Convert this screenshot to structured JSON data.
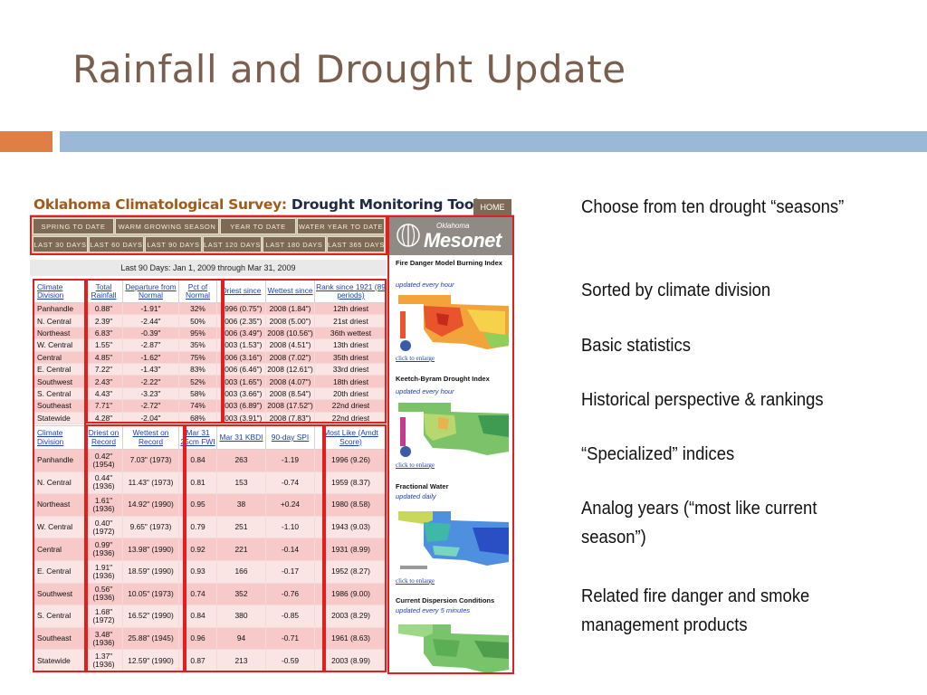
{
  "slide": {
    "title": "Rainfall and Drought Update"
  },
  "colors": {
    "title": "#7b5f4e",
    "accent_orange": "#e07f45",
    "accent_blue": "#9ab9d6",
    "highlight_box": "#e21f1f"
  },
  "screenshot": {
    "title_part1": "Oklahoma Climatological Survey:",
    "title_part2": "Drought Monitoring Tools",
    "home_label": "HOME",
    "season_tabs": [
      "SPRING TO DATE",
      "WARM GROWING SEASON",
      "YEAR TO DATE",
      "WATER YEAR TO DATE"
    ],
    "day_tabs": [
      "LAST 30 DAYS",
      "LAST 60 DAYS",
      "LAST 90 DAYS",
      "LAST 120 DAYS",
      "LAST 180 DAYS",
      "LAST 365 DAYS"
    ],
    "logo_small": "Oklahoma",
    "logo_big": "Mesonet",
    "period": "Last 90 Days: Jan 1, 2009 through Mar 31, 2009",
    "table1": {
      "headers": [
        "Climate Division",
        "Total Rainfall",
        "Departure from Normal",
        "Pct of Normal",
        "Driest since",
        "Wettest since",
        "Rank since 1921 (89 periods)"
      ],
      "rows": [
        [
          "Panhandle",
          "0.88\"",
          "-1.91\"",
          "32%",
          "1996 (0.75\")",
          "2008 (1.84\")",
          "12th driest"
        ],
        [
          "N. Central",
          "2.39\"",
          "-2.44\"",
          "50%",
          "2006 (2.35\")",
          "2008 (5.00\")",
          "21st driest"
        ],
        [
          "Northeast",
          "6.83\"",
          "-0.39\"",
          "95%",
          "2006 (3.49\")",
          "2008 (10.56\")",
          "36th wettest"
        ],
        [
          "W. Central",
          "1.55\"",
          "-2.87\"",
          "35%",
          "2003 (1.53\")",
          "2008 (4.51\")",
          "13th driest"
        ],
        [
          "Central",
          "4.85\"",
          "-1.62\"",
          "75%",
          "2006 (3.16\")",
          "2008 (7.02\")",
          "35th driest"
        ],
        [
          "E. Central",
          "7.22\"",
          "-1.43\"",
          "83%",
          "2006 (6.46\")",
          "2008 (12.61\")",
          "33rd driest"
        ],
        [
          "Southwest",
          "2.43\"",
          "-2.22\"",
          "52%",
          "2003 (1.65\")",
          "2008 (4.07\")",
          "18th driest"
        ],
        [
          "S. Central",
          "4.43\"",
          "-3.23\"",
          "58%",
          "2003 (3.66\")",
          "2008 (8.54\")",
          "20th driest"
        ],
        [
          "Southeast",
          "7.71\"",
          "-2.72\"",
          "74%",
          "2003 (6.89\")",
          "2008 (17.52\")",
          "22nd driest"
        ],
        [
          "Statewide",
          "4.28\"",
          "-2.04\"",
          "68%",
          "2003 (3.91\")",
          "2008 (7.83\")",
          "22nd driest"
        ]
      ]
    },
    "table2": {
      "headers": [
        "Climate Division",
        "Driest on Record",
        "Wettest on Record",
        "Mar 31 25cm FWI",
        "Mar 31 KBDI",
        "90-day SPI",
        "Most Like (Amdt Score)"
      ],
      "rows": [
        [
          "Panhandle",
          "0.42\" (1954)",
          "7.03\" (1973)",
          "0.84",
          "263",
          "-1.19",
          "1996 (9.26)"
        ],
        [
          "N. Central",
          "0.44\" (1936)",
          "11.43\" (1973)",
          "0.81",
          "153",
          "-0.74",
          "1959 (8.37)"
        ],
        [
          "Northeast",
          "1.61\" (1936)",
          "14.92\" (1990)",
          "0.95",
          "38",
          "+0.24",
          "1980 (8.58)"
        ],
        [
          "W. Central",
          "0.40\" (1972)",
          "9.65\" (1973)",
          "0.79",
          "251",
          "-1.10",
          "1943 (9.03)"
        ],
        [
          "Central",
          "0.99\" (1936)",
          "13.98\" (1990)",
          "0.92",
          "221",
          "-0.14",
          "1931 (8.99)"
        ],
        [
          "E. Central",
          "1.91\" (1936)",
          "18.59\" (1990)",
          "0.93",
          "166",
          "-0.17",
          "1952 (8.27)"
        ],
        [
          "Southwest",
          "0.56\" (1936)",
          "10.05\" (1973)",
          "0.74",
          "352",
          "-0.76",
          "1986 (9.00)"
        ],
        [
          "S. Central",
          "1.68\" (1972)",
          "16.52\" (1990)",
          "0.84",
          "380",
          "-0.85",
          "2003 (8.29)"
        ],
        [
          "Southeast",
          "3.48\" (1936)",
          "25.88\" (1945)",
          "0.96",
          "94",
          "-0.71",
          "1961 (8.63)"
        ],
        [
          "Statewide",
          "1.37\" (1936)",
          "12.59\" (1990)",
          "0.87",
          "213",
          "-0.59",
          "2003 (8.99)"
        ]
      ]
    },
    "products": [
      {
        "title": "Fire Danger Model Burning Index",
        "subtitle": "updated every hour",
        "link": "click to enlarge"
      },
      {
        "title": "Keetch-Byram Drought Index",
        "subtitle": "updated every hour",
        "link": "click to enlarge"
      },
      {
        "title": "Fractional Water",
        "subtitle": "updated daily",
        "link": "click to enlarge"
      },
      {
        "title": "Current Dispersion Conditions",
        "subtitle": "updated every 5 minutes",
        "link": ""
      }
    ]
  },
  "bullets": [
    "Choose from ten drought “seasons”",
    "Sorted by climate division",
    "Basic statistics",
    "Historical perspective & rankings",
    "“Specialized” indices",
    "Analog years (“most like current season”)",
    "Related fire danger and smoke management products"
  ]
}
